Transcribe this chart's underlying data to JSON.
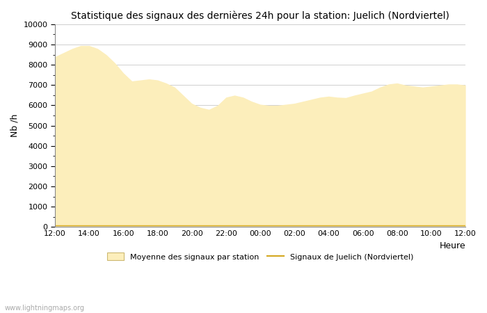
{
  "title": "Statistique des signaux des dernières 24h pour la station: Juelich (Nordviertel)",
  "xlabel": "Heure",
  "ylabel": "Nb /h",
  "ylim": [
    0,
    10000
  ],
  "yticks": [
    0,
    1000,
    2000,
    3000,
    4000,
    5000,
    6000,
    7000,
    8000,
    9000,
    10000
  ],
  "xtick_labels": [
    "12:00",
    "14:00",
    "16:00",
    "18:00",
    "20:00",
    "22:00",
    "00:00",
    "02:00",
    "04:00",
    "06:00",
    "08:00",
    "10:00",
    "12:00"
  ],
  "fill_color": "#fceebb",
  "fill_edge_color": "#fceebb",
  "line_color": "#d4a820",
  "background_color": "#ffffff",
  "grid_color": "#c8c8c8",
  "title_fontsize": 10,
  "axis_fontsize": 9,
  "tick_fontsize": 8,
  "watermark": "www.lightningmaps.org",
  "legend_fill_label": "Moyenne des signaux par station",
  "legend_line_label": "Signaux de Juelich (Nordviertel)",
  "x_values": [
    0,
    0.5,
    1,
    1.5,
    2,
    2.5,
    3,
    3.5,
    4,
    4.5,
    5,
    5.5,
    6,
    6.5,
    7,
    7.5,
    8,
    8.5,
    9,
    9.5,
    10,
    10.5,
    11,
    11.5,
    12,
    12.5,
    13,
    13.5,
    14,
    14.5,
    15,
    15.5,
    16,
    16.5,
    17,
    17.5,
    18,
    18.5,
    19,
    19.5,
    20,
    20.5,
    21,
    21.5,
    22,
    22.5,
    23,
    23.5,
    24
  ],
  "y_fill": [
    8400,
    8600,
    8800,
    8950,
    8950,
    8800,
    8500,
    8100,
    7600,
    7200,
    7250,
    7300,
    7250,
    7100,
    6900,
    6500,
    6100,
    5900,
    5800,
    6000,
    6400,
    6500,
    6400,
    6200,
    6050,
    6000,
    6000,
    6050,
    6100,
    6200,
    6300,
    6400,
    6450,
    6400,
    6380,
    6500,
    6600,
    6700,
    6900,
    7050,
    7100,
    7000,
    6950,
    6900,
    6950,
    7000,
    7050,
    7050,
    7000
  ],
  "y_line": [
    80,
    80,
    80,
    80,
    80,
    80,
    80,
    80,
    80,
    80,
    80,
    80,
    80,
    80,
    80,
    80,
    80,
    80,
    80,
    80,
    80,
    80,
    80,
    80,
    80,
    80,
    80,
    80,
    80,
    80,
    80,
    80,
    80,
    80,
    80,
    80,
    80,
    80,
    80,
    80,
    80,
    80,
    80,
    80,
    80,
    80,
    80,
    80,
    80
  ]
}
